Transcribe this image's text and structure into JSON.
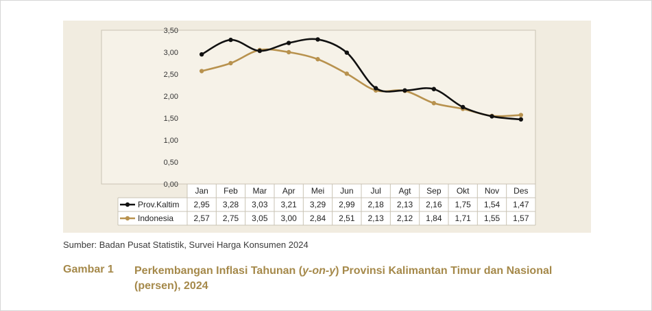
{
  "source_note": "Sumber: Badan Pusat Statistik, Survei Harga Konsumen 2024",
  "figure": {
    "label": "Gambar 1",
    "title_pre": "Perkembangan Inflasi Tahunan (",
    "title_italic": "y-on-y",
    "title_post": ") Provinsi Kalimantan Timur dan Nasional (persen), 2024"
  },
  "chart_data": {
    "type": "line",
    "categories": [
      "Jan",
      "Feb",
      "Mar",
      "Apr",
      "Mei",
      "Jun",
      "Jul",
      "Agt",
      "Sep",
      "Okt",
      "Nov",
      "Des"
    ],
    "series": [
      {
        "name": "Prov.Kaltim",
        "values": [
          2.95,
          3.28,
          3.03,
          3.21,
          3.29,
          2.99,
          2.18,
          2.13,
          2.16,
          1.75,
          1.54,
          1.47
        ],
        "labels": [
          "2,95",
          "3,28",
          "3,03",
          "3,21",
          "3,29",
          "2,99",
          "2,18",
          "2,13",
          "2,16",
          "1,75",
          "1,54",
          "1,47"
        ],
        "color": "#111111"
      },
      {
        "name": "Indonesia",
        "values": [
          2.57,
          2.75,
          3.05,
          3.0,
          2.84,
          2.51,
          2.13,
          2.12,
          1.84,
          1.71,
          1.55,
          1.57
        ],
        "labels": [
          "2,57",
          "2,75",
          "3,05",
          "3,00",
          "2,84",
          "2,51",
          "2,13",
          "2,12",
          "1,84",
          "1,71",
          "1,55",
          "1,57"
        ],
        "color": "#b8924e"
      }
    ],
    "y_ticks": [
      "0,00",
      "0,50",
      "1,00",
      "1,50",
      "2,00",
      "2,50",
      "3,00",
      "3,50"
    ],
    "ylim": [
      0,
      3.5
    ],
    "grid": false,
    "smooth": true,
    "legend": "data-table-bottom",
    "colors": {
      "panel_bg": "#f1ece0",
      "plot_bg": "#f6f2e8",
      "table_bg": "#ffffff",
      "title_color": "#a5894a"
    }
  }
}
